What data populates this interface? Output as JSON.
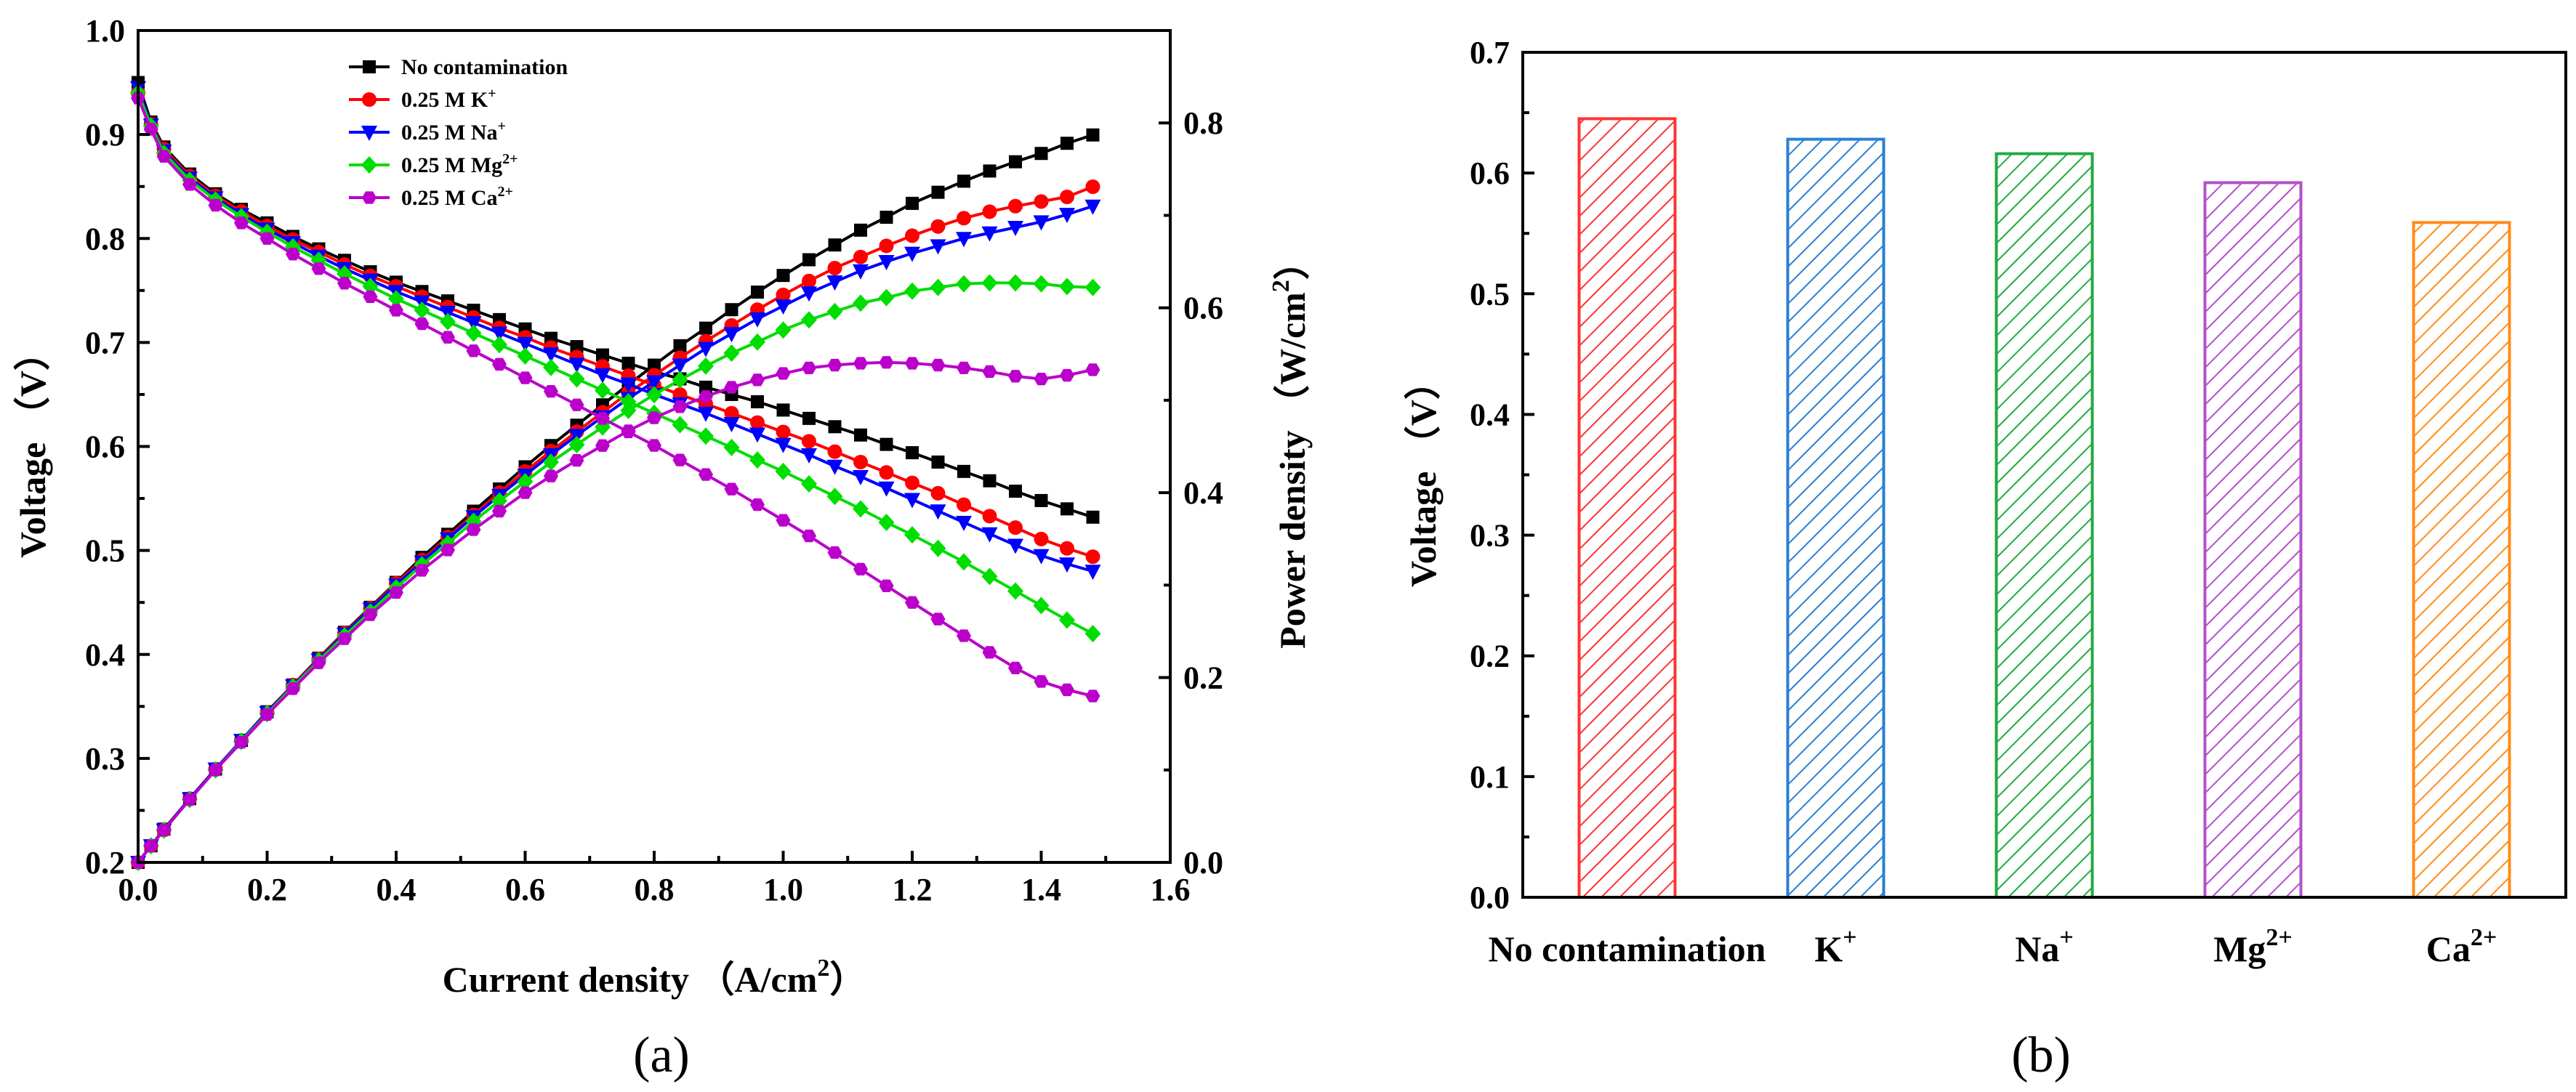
{
  "panels": [
    {
      "label": "(a)"
    },
    {
      "label": "(b)"
    }
  ],
  "chart_data": [
    {
      "type": "line",
      "xlabel": "Current density （A/cm",
      "xlabel_sup": "2",
      "xlabel_end": "）",
      "ylabel": "Voltage （V）",
      "y2label": "Power density （W/cm",
      "y2label_sup": "2",
      "y2label_end": "）",
      "xlim": [
        0,
        1.6
      ],
      "ylim": [
        0.2,
        1.0
      ],
      "y2lim": [
        0,
        0.9
      ],
      "x_ticks": [
        "0.0",
        "0.2",
        "0.4",
        "0.6",
        "0.8",
        "1.0",
        "1.2",
        "1.4",
        "1.6"
      ],
      "y_ticks": [
        "0.2",
        "0.3",
        "0.4",
        "0.5",
        "0.6",
        "0.7",
        "0.8",
        "0.9",
        "1.0"
      ],
      "y2_ticks": [
        "0.0",
        "0.2",
        "0.4",
        "0.6",
        "0.8"
      ],
      "grid": false,
      "legend_position": "top-center",
      "series": [
        {
          "name": "No contamination",
          "name_sup": "",
          "color": "#000000",
          "marker": "square",
          "x": [
            0,
            0.02,
            0.04,
            0.08,
            0.12,
            0.16,
            0.2,
            0.24,
            0.28,
            0.32,
            0.36,
            0.4,
            0.44,
            0.48,
            0.52,
            0.56,
            0.6,
            0.64,
            0.68,
            0.72,
            0.76,
            0.8,
            0.84,
            0.88,
            0.92,
            0.96,
            1.0,
            1.04,
            1.08,
            1.12,
            1.16,
            1.2,
            1.24,
            1.28,
            1.32,
            1.36,
            1.4,
            1.44,
            1.48
          ],
          "voltage": [
            0.95,
            0.912,
            0.888,
            0.862,
            0.843,
            0.828,
            0.815,
            0.802,
            0.79,
            0.779,
            0.768,
            0.758,
            0.749,
            0.74,
            0.731,
            0.722,
            0.713,
            0.704,
            0.696,
            0.688,
            0.68,
            0.672,
            0.665,
            0.657,
            0.65,
            0.643,
            0.635,
            0.627,
            0.619,
            0.611,
            0.602,
            0.594,
            0.585,
            0.576,
            0.567,
            0.557,
            0.548,
            0.54,
            0.532
          ],
          "power": [
            0,
            0.018,
            0.036,
            0.069,
            0.101,
            0.132,
            0.163,
            0.192,
            0.221,
            0.249,
            0.276,
            0.303,
            0.33,
            0.355,
            0.38,
            0.404,
            0.428,
            0.451,
            0.473,
            0.495,
            0.517,
            0.538,
            0.559,
            0.578,
            0.598,
            0.617,
            0.635,
            0.652,
            0.668,
            0.684,
            0.698,
            0.713,
            0.725,
            0.737,
            0.748,
            0.758,
            0.767,
            0.778,
            0.787
          ]
        },
        {
          "name": "0.25 M K",
          "name_sup": "+",
          "color": "#ff0000",
          "marker": "circle",
          "x": [
            0,
            0.02,
            0.04,
            0.08,
            0.12,
            0.16,
            0.2,
            0.24,
            0.28,
            0.32,
            0.36,
            0.4,
            0.44,
            0.48,
            0.52,
            0.56,
            0.6,
            0.64,
            0.68,
            0.72,
            0.76,
            0.8,
            0.84,
            0.88,
            0.92,
            0.96,
            1.0,
            1.04,
            1.08,
            1.12,
            1.16,
            1.2,
            1.24,
            1.28,
            1.32,
            1.36,
            1.4,
            1.44,
            1.48
          ],
          "voltage": [
            0.94,
            0.91,
            0.886,
            0.86,
            0.841,
            0.826,
            0.812,
            0.799,
            0.787,
            0.775,
            0.764,
            0.754,
            0.744,
            0.734,
            0.724,
            0.714,
            0.705,
            0.695,
            0.686,
            0.677,
            0.668,
            0.659,
            0.65,
            0.641,
            0.632,
            0.623,
            0.614,
            0.605,
            0.595,
            0.585,
            0.575,
            0.565,
            0.555,
            0.544,
            0.533,
            0.522,
            0.511,
            0.502,
            0.494
          ],
          "power": [
            0,
            0.018,
            0.035,
            0.069,
            0.101,
            0.132,
            0.162,
            0.192,
            0.22,
            0.248,
            0.275,
            0.302,
            0.327,
            0.352,
            0.376,
            0.4,
            0.423,
            0.445,
            0.466,
            0.487,
            0.508,
            0.527,
            0.546,
            0.564,
            0.581,
            0.598,
            0.614,
            0.629,
            0.643,
            0.655,
            0.667,
            0.678,
            0.688,
            0.697,
            0.704,
            0.71,
            0.715,
            0.72,
            0.731
          ]
        },
        {
          "name": "0.25 M Na",
          "name_sup": "+",
          "color": "#0000ff",
          "marker": "triangle-down",
          "x": [
            0,
            0.02,
            0.04,
            0.08,
            0.12,
            0.16,
            0.2,
            0.24,
            0.28,
            0.32,
            0.36,
            0.4,
            0.44,
            0.48,
            0.52,
            0.56,
            0.6,
            0.64,
            0.68,
            0.72,
            0.76,
            0.8,
            0.84,
            0.88,
            0.92,
            0.96,
            1.0,
            1.04,
            1.08,
            1.12,
            1.16,
            1.2,
            1.24,
            1.28,
            1.32,
            1.36,
            1.4,
            1.44,
            1.48
          ],
          "voltage": [
            0.945,
            0.909,
            0.884,
            0.858,
            0.839,
            0.823,
            0.809,
            0.796,
            0.783,
            0.771,
            0.76,
            0.749,
            0.739,
            0.729,
            0.719,
            0.709,
            0.699,
            0.689,
            0.679,
            0.669,
            0.66,
            0.65,
            0.641,
            0.632,
            0.622,
            0.612,
            0.602,
            0.592,
            0.581,
            0.571,
            0.56,
            0.549,
            0.538,
            0.527,
            0.516,
            0.505,
            0.495,
            0.487,
            0.48
          ],
          "power": [
            0,
            0.018,
            0.035,
            0.069,
            0.101,
            0.132,
            0.162,
            0.191,
            0.219,
            0.247,
            0.274,
            0.3,
            0.325,
            0.35,
            0.374,
            0.397,
            0.419,
            0.441,
            0.462,
            0.482,
            0.502,
            0.52,
            0.538,
            0.556,
            0.572,
            0.588,
            0.602,
            0.616,
            0.628,
            0.64,
            0.65,
            0.659,
            0.667,
            0.675,
            0.681,
            0.687,
            0.693,
            0.701,
            0.71
          ]
        },
        {
          "name": "0.25 M Mg",
          "name_sup": "2+",
          "color": "#00dd00",
          "marker": "diamond",
          "x": [
            0,
            0.02,
            0.04,
            0.08,
            0.12,
            0.16,
            0.2,
            0.24,
            0.28,
            0.32,
            0.36,
            0.4,
            0.44,
            0.48,
            0.52,
            0.56,
            0.6,
            0.64,
            0.68,
            0.72,
            0.76,
            0.8,
            0.84,
            0.88,
            0.92,
            0.96,
            1.0,
            1.04,
            1.08,
            1.12,
            1.16,
            1.2,
            1.24,
            1.28,
            1.32,
            1.36,
            1.4,
            1.44,
            1.48
          ],
          "voltage": [
            0.94,
            0.908,
            0.882,
            0.856,
            0.837,
            0.821,
            0.806,
            0.792,
            0.779,
            0.766,
            0.754,
            0.742,
            0.731,
            0.72,
            0.709,
            0.698,
            0.687,
            0.676,
            0.665,
            0.654,
            0.643,
            0.632,
            0.621,
            0.61,
            0.599,
            0.587,
            0.576,
            0.564,
            0.552,
            0.54,
            0.527,
            0.515,
            0.502,
            0.489,
            0.475,
            0.461,
            0.447,
            0.433,
            0.42
          ],
          "power": [
            0,
            0.018,
            0.035,
            0.068,
            0.1,
            0.131,
            0.161,
            0.19,
            0.218,
            0.245,
            0.271,
            0.297,
            0.322,
            0.345,
            0.369,
            0.391,
            0.412,
            0.433,
            0.452,
            0.471,
            0.489,
            0.506,
            0.522,
            0.537,
            0.551,
            0.563,
            0.576,
            0.587,
            0.596,
            0.605,
            0.611,
            0.618,
            0.622,
            0.626,
            0.627,
            0.627,
            0.626,
            0.623,
            0.622
          ]
        },
        {
          "name": "0.25 M Ca",
          "name_sup": "2+",
          "color": "#bb00cc",
          "marker": "hexagon",
          "x": [
            0,
            0.02,
            0.04,
            0.08,
            0.12,
            0.16,
            0.2,
            0.24,
            0.28,
            0.32,
            0.36,
            0.4,
            0.44,
            0.48,
            0.52,
            0.56,
            0.6,
            0.64,
            0.68,
            0.72,
            0.76,
            0.8,
            0.84,
            0.88,
            0.92,
            0.96,
            1.0,
            1.04,
            1.08,
            1.12,
            1.16,
            1.2,
            1.24,
            1.28,
            1.32,
            1.36,
            1.4,
            1.44,
            1.48
          ],
          "voltage": [
            0.935,
            0.905,
            0.879,
            0.852,
            0.832,
            0.815,
            0.8,
            0.785,
            0.771,
            0.757,
            0.744,
            0.731,
            0.718,
            0.705,
            0.692,
            0.679,
            0.666,
            0.653,
            0.64,
            0.627,
            0.614,
            0.601,
            0.587,
            0.573,
            0.559,
            0.544,
            0.529,
            0.514,
            0.498,
            0.482,
            0.466,
            0.45,
            0.434,
            0.418,
            0.402,
            0.387,
            0.374,
            0.366,
            0.36
          ],
          "power": [
            0,
            0.018,
            0.035,
            0.068,
            0.1,
            0.13,
            0.16,
            0.188,
            0.216,
            0.242,
            0.268,
            0.292,
            0.316,
            0.338,
            0.36,
            0.38,
            0.4,
            0.418,
            0.435,
            0.451,
            0.467,
            0.481,
            0.493,
            0.504,
            0.514,
            0.522,
            0.529,
            0.535,
            0.538,
            0.54,
            0.541,
            0.54,
            0.538,
            0.535,
            0.531,
            0.526,
            0.523,
            0.527,
            0.533
          ]
        }
      ]
    },
    {
      "type": "bar",
      "ylabel": "Voltage （V）",
      "ylim": [
        0,
        0.7
      ],
      "y_ticks": [
        "0.0",
        "0.1",
        "0.2",
        "0.3",
        "0.4",
        "0.5",
        "0.6",
        "0.7"
      ],
      "grid": false,
      "categories": [
        {
          "label": "No contamination",
          "sup": ""
        },
        {
          "label": "K",
          "sup": "+"
        },
        {
          "label": "Na",
          "sup": "+"
        },
        {
          "label": "Mg",
          "sup": "2+"
        },
        {
          "label": "Ca",
          "sup": "2+"
        }
      ],
      "values": [
        0.645,
        0.628,
        0.616,
        0.592,
        0.559
      ],
      "colors": [
        "#ff3333",
        "#2a7fd4",
        "#22aa44",
        "#b450c8",
        "#ff8c1a"
      ]
    }
  ]
}
